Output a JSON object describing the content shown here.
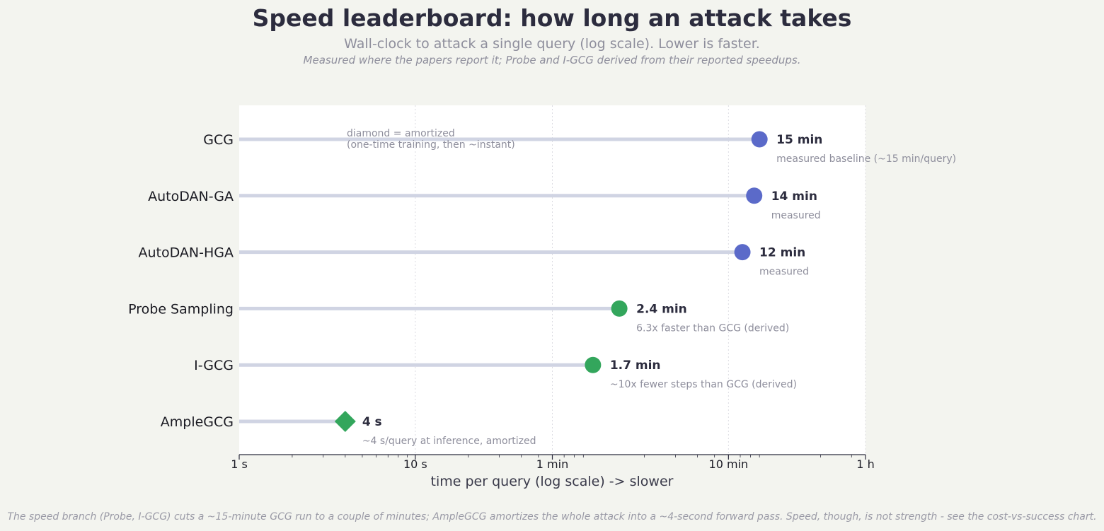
{
  "header": {
    "title": "Speed leaderboard: how long an attack takes",
    "subtitle": "Wall-clock to attack a single query (log scale). Lower is faster.",
    "note": "Measured where the papers report it; Probe and I-GCG derived from their reported speedups."
  },
  "footer": {
    "text": "The speed branch (Probe, I-GCG) cuts a ~15-minute GCG run to a couple of minutes; AmpleGCG amortizes the whole attack into a ~4-second forward pass. Speed, though, is not strength - see the cost-vs-success chart."
  },
  "chart_data": {
    "type": "lollipop",
    "xscale": "log",
    "xlim_seconds": [
      1,
      3600
    ],
    "xlabel": "time per query (log scale)   ->  slower",
    "xticks": [
      {
        "seconds": 1,
        "label": "1 s"
      },
      {
        "seconds": 10,
        "label": "10 s"
      },
      {
        "seconds": 60,
        "label": "1 min"
      },
      {
        "seconds": 600,
        "label": "10 min"
      },
      {
        "seconds": 3600,
        "label": "1 h"
      }
    ],
    "grid": "vertical",
    "annotation": {
      "line1": "diamond = amortized",
      "line2": "(one-time training, then ~instant)"
    },
    "colors": {
      "measured": "#5b6ac9",
      "derived": "#33a65c",
      "stem": "#d0d4e3",
      "value_text": "#2c2c3e",
      "note_text": "#8e8e9c"
    },
    "series": [
      {
        "category": "GCG",
        "seconds": 900,
        "value_label": "15 min",
        "note": "measured baseline (~15 min/query)",
        "marker": "circle",
        "kind": "measured"
      },
      {
        "category": "AutoDAN-GA",
        "seconds": 840,
        "value_label": "14 min",
        "note": "measured",
        "marker": "circle",
        "kind": "measured"
      },
      {
        "category": "AutoDAN-HGA",
        "seconds": 720,
        "value_label": "12 min",
        "note": "measured",
        "marker": "circle",
        "kind": "measured"
      },
      {
        "category": "Probe Sampling",
        "seconds": 144,
        "value_label": "2.4 min",
        "note": "6.3x faster than GCG (derived)",
        "marker": "circle",
        "kind": "derived"
      },
      {
        "category": "I-GCG",
        "seconds": 102,
        "value_label": "1.7 min",
        "note": "~10x fewer steps than GCG (derived)",
        "marker": "circle",
        "kind": "derived"
      },
      {
        "category": "AmpleGCG",
        "seconds": 4,
        "value_label": "4 s",
        "note": "~4 s/query at inference, amortized",
        "marker": "diamond",
        "kind": "derived"
      }
    ]
  }
}
